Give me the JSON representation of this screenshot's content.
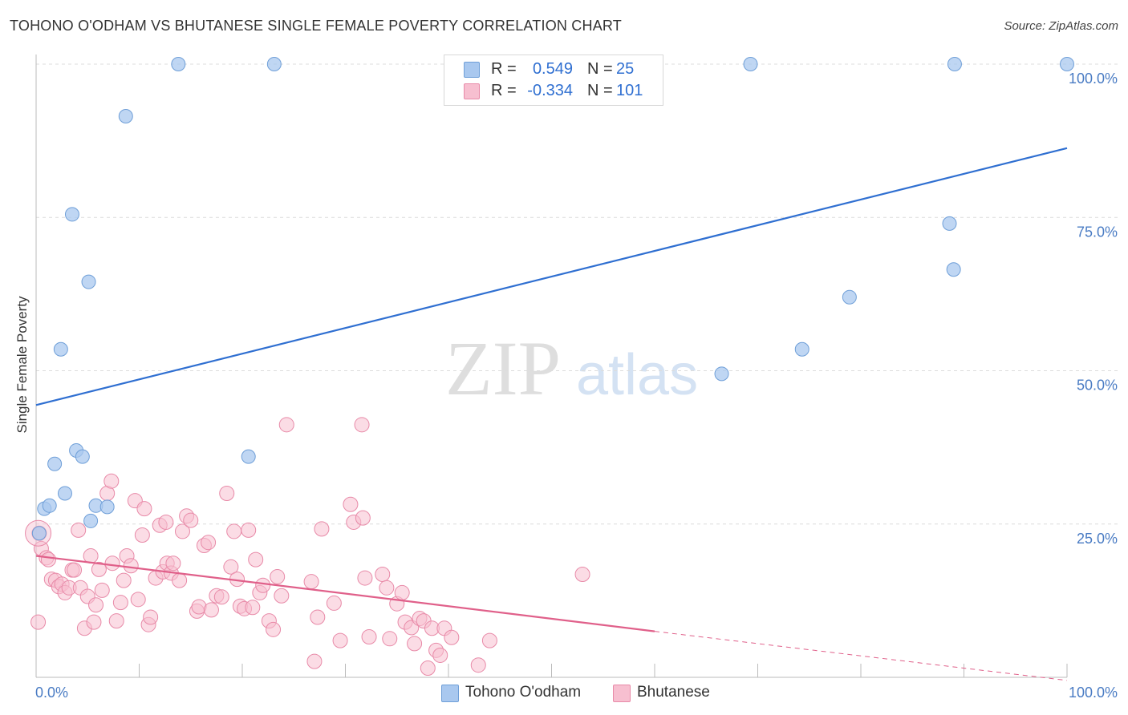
{
  "title": "TOHONO O'ODHAM VS BHUTANESE SINGLE FEMALE POVERTY CORRELATION CHART",
  "source": "Source: ZipAtlas.com",
  "watermark": {
    "zip": "ZIP",
    "atlas": "atlas"
  },
  "legend": {
    "rows": [
      {
        "r_label": "R =",
        "r_value": "0.549",
        "n_label": "N =",
        "n_value": "25",
        "color": "#a9c8ef",
        "border": "#6f9fd8"
      },
      {
        "r_label": "R =",
        "r_value": "-0.334",
        "n_label": "N =",
        "n_value": "101",
        "color": "#f7bfd0",
        "border": "#e88aa8"
      }
    ]
  },
  "bottom_legend": [
    {
      "label": "Tohono O'odham",
      "color": "#a9c8ef",
      "border": "#6f9fd8"
    },
    {
      "label": "Bhutanese",
      "color": "#f7bfd0",
      "border": "#e88aa8"
    }
  ],
  "colors": {
    "blue": "#2f6fd1",
    "blue_fill": "#a9c8ef",
    "pink": "#e0608a",
    "pink_fill": "#f7bfd0",
    "axis_text": "#4a7cc4"
  },
  "chart_data": {
    "type": "scatter",
    "title": "TOHONO O'ODHAM VS BHUTANESE SINGLE FEMALE POVERTY CORRELATION CHART",
    "xlabel": "",
    "ylabel": "Single Female Poverty",
    "xlim": [
      0,
      100
    ],
    "ylim": [
      0,
      100
    ],
    "x_tick_labels": [
      "0.0%",
      "100.0%"
    ],
    "y_ticks": [
      25,
      50,
      75,
      100
    ],
    "y_tick_labels": [
      "25.0%",
      "50.0%",
      "75.0%",
      "100.0%"
    ],
    "grid": true,
    "series": [
      {
        "name": "Tohono O'odham",
        "r": 0.549,
        "n": 25,
        "trend": {
          "x0": 0,
          "y0": 44.4,
          "x1": 100,
          "y1": 86.3
        },
        "points": [
          [
            0.3,
            23.5
          ],
          [
            0.8,
            27.5
          ],
          [
            1.3,
            28.0
          ],
          [
            1.8,
            34.8
          ],
          [
            2.4,
            53.5
          ],
          [
            2.8,
            30.0
          ],
          [
            3.5,
            75.5
          ],
          [
            3.9,
            37.0
          ],
          [
            4.5,
            36.0
          ],
          [
            5.1,
            64.5
          ],
          [
            5.3,
            25.5
          ],
          [
            5.8,
            28.0
          ],
          [
            6.9,
            27.8
          ],
          [
            8.7,
            91.5
          ],
          [
            13.8,
            100.0
          ],
          [
            20.6,
            36.0
          ],
          [
            23.1,
            100.0
          ],
          [
            66.5,
            49.5
          ],
          [
            69.3,
            100.0
          ],
          [
            74.3,
            53.5
          ],
          [
            78.9,
            62.0
          ],
          [
            88.6,
            74.0
          ],
          [
            89.1,
            100.0
          ],
          [
            89.0,
            66.5
          ],
          [
            100.0,
            100.0
          ]
        ]
      },
      {
        "name": "Bhutanese",
        "r": -0.334,
        "n": 101,
        "trend": {
          "x0": 0,
          "y0": 19.8,
          "x1": 60,
          "y1": 7.5
        },
        "trend_dashed": {
          "x0": 60,
          "y0": 7.5,
          "x1": 100,
          "y1": -0.5
        },
        "points": [
          [
            0.3,
            23.5
          ],
          [
            0.5,
            21.0
          ],
          [
            1.0,
            19.5
          ],
          [
            1.2,
            19.2
          ],
          [
            1.5,
            16.0
          ],
          [
            1.9,
            15.8
          ],
          [
            2.2,
            14.8
          ],
          [
            2.5,
            15.2
          ],
          [
            2.8,
            13.8
          ],
          [
            3.2,
            14.6
          ],
          [
            3.5,
            17.5
          ],
          [
            3.7,
            17.5
          ],
          [
            4.1,
            24.0
          ],
          [
            4.3,
            14.6
          ],
          [
            4.7,
            8.0
          ],
          [
            5.0,
            13.2
          ],
          [
            5.3,
            19.8
          ],
          [
            5.6,
            9.0
          ],
          [
            5.8,
            11.8
          ],
          [
            6.1,
            17.6
          ],
          [
            6.4,
            14.2
          ],
          [
            6.9,
            30.0
          ],
          [
            7.3,
            32.0
          ],
          [
            7.4,
            18.6
          ],
          [
            7.8,
            9.2
          ],
          [
            8.2,
            12.2
          ],
          [
            8.5,
            15.8
          ],
          [
            8.8,
            19.8
          ],
          [
            9.2,
            18.2
          ],
          [
            9.6,
            28.8
          ],
          [
            9.9,
            12.7
          ],
          [
            10.3,
            23.2
          ],
          [
            10.5,
            27.5
          ],
          [
            10.9,
            8.6
          ],
          [
            11.1,
            9.8
          ],
          [
            11.6,
            16.2
          ],
          [
            12.0,
            24.8
          ],
          [
            12.3,
            17.2
          ],
          [
            12.6,
            25.3
          ],
          [
            12.7,
            18.6
          ],
          [
            13.1,
            17.0
          ],
          [
            13.3,
            18.6
          ],
          [
            13.9,
            15.8
          ],
          [
            14.2,
            23.8
          ],
          [
            14.6,
            26.3
          ],
          [
            15.0,
            25.6
          ],
          [
            15.6,
            10.8
          ],
          [
            15.8,
            11.5
          ],
          [
            16.3,
            21.5
          ],
          [
            16.7,
            22.0
          ],
          [
            17.0,
            11.0
          ],
          [
            17.5,
            13.3
          ],
          [
            18.0,
            13.1
          ],
          [
            18.5,
            30.0
          ],
          [
            18.9,
            18.0
          ],
          [
            19.2,
            23.8
          ],
          [
            19.5,
            16.0
          ],
          [
            19.8,
            11.6
          ],
          [
            20.2,
            11.2
          ],
          [
            20.6,
            24.0
          ],
          [
            21.0,
            11.4
          ],
          [
            21.3,
            19.2
          ],
          [
            21.7,
            13.8
          ],
          [
            22.0,
            15.0
          ],
          [
            22.6,
            9.2
          ],
          [
            23.0,
            7.8
          ],
          [
            23.4,
            16.4
          ],
          [
            23.8,
            13.3
          ],
          [
            24.3,
            41.2
          ],
          [
            26.7,
            15.6
          ],
          [
            27.0,
            2.6
          ],
          [
            27.3,
            9.8
          ],
          [
            27.7,
            24.2
          ],
          [
            28.9,
            12.1
          ],
          [
            29.5,
            6.0
          ],
          [
            30.5,
            28.2
          ],
          [
            30.8,
            25.3
          ],
          [
            31.7,
            26.0
          ],
          [
            31.9,
            16.2
          ],
          [
            32.3,
            6.6
          ],
          [
            31.6,
            41.2
          ],
          [
            33.6,
            16.8
          ],
          [
            34.0,
            14.6
          ],
          [
            34.3,
            6.3
          ],
          [
            35.0,
            12.0
          ],
          [
            35.5,
            13.8
          ],
          [
            35.8,
            9.0
          ],
          [
            36.4,
            8.1
          ],
          [
            36.7,
            5.5
          ],
          [
            37.2,
            9.6
          ],
          [
            37.6,
            9.2
          ],
          [
            38.0,
            1.5
          ],
          [
            38.4,
            8.0
          ],
          [
            38.8,
            4.4
          ],
          [
            39.2,
            3.6
          ],
          [
            39.6,
            8.0
          ],
          [
            40.3,
            6.5
          ],
          [
            42.9,
            2.0
          ],
          [
            44.0,
            6.0
          ],
          [
            53.0,
            16.8
          ],
          [
            0.2,
            9.0
          ]
        ]
      }
    ]
  }
}
